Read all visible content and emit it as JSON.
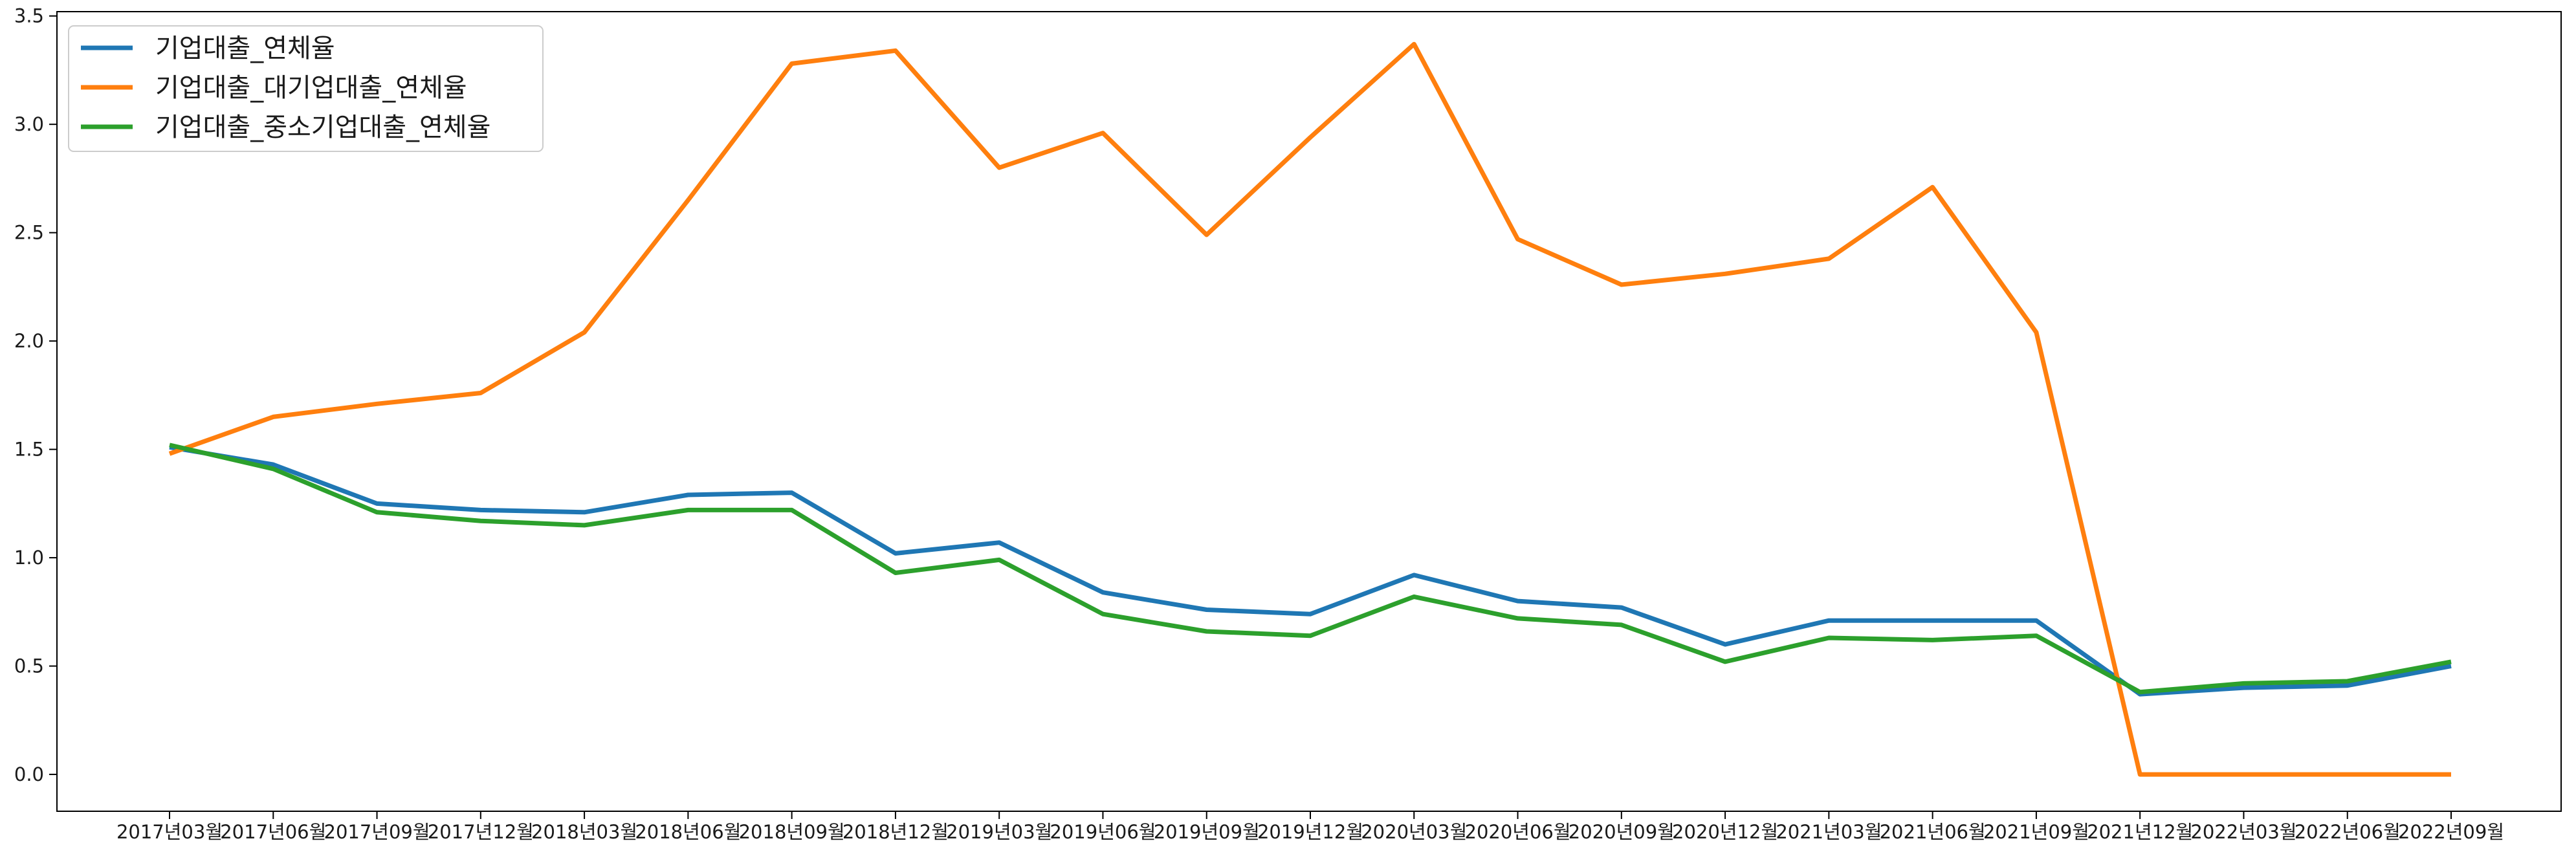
{
  "chart_data": {
    "type": "line",
    "title": "",
    "xlabel": "",
    "ylabel": "",
    "categories": [
      "2017년03월",
      "2017년06월",
      "2017년09월",
      "2017년12월",
      "2018년03월",
      "2018년06월",
      "2018년09월",
      "2018년12월",
      "2019년03월",
      "2019년06월",
      "2019년09월",
      "2019년12월",
      "2020년03월",
      "2020년06월",
      "2020년09월",
      "2020년12월",
      "2021년03월",
      "2021년06월",
      "2021년09월",
      "2021년12월",
      "2022년03월",
      "2022년06월",
      "2022년09월"
    ],
    "ylim": [
      -0.17,
      3.52
    ],
    "yticks": [
      0.0,
      0.5,
      1.0,
      1.5,
      2.0,
      2.5,
      3.0,
      3.5
    ],
    "ytick_labels": [
      "0.0",
      "0.5",
      "1.0",
      "1.5",
      "2.0",
      "2.5",
      "3.0",
      "3.5"
    ],
    "grid": false,
    "legend_position": "top-left",
    "series": [
      {
        "name": "기업대출_연체율",
        "color": "#1f77b4",
        "values": [
          1.51,
          1.43,
          1.25,
          1.22,
          1.21,
          1.29,
          1.3,
          1.02,
          1.07,
          0.84,
          0.76,
          0.74,
          0.92,
          0.8,
          0.77,
          0.6,
          0.71,
          0.71,
          0.71,
          0.37,
          0.4,
          0.41,
          0.5
        ]
      },
      {
        "name": "기업대출_대기업대출_연체율",
        "color": "#ff7f0e",
        "values": [
          1.48,
          1.65,
          1.71,
          1.76,
          2.04,
          2.65,
          3.28,
          3.34,
          2.8,
          2.96,
          2.49,
          2.94,
          3.37,
          2.47,
          2.26,
          2.31,
          2.38,
          2.71,
          2.04,
          0.0,
          0.0,
          0.0,
          0.0
        ]
      },
      {
        "name": "기업대출_중소기업대출_연체율",
        "color": "#2ca02c",
        "values": [
          1.52,
          1.41,
          1.21,
          1.17,
          1.15,
          1.22,
          1.22,
          0.93,
          0.99,
          0.74,
          0.66,
          0.64,
          0.82,
          0.72,
          0.69,
          0.52,
          0.63,
          0.62,
          0.64,
          0.38,
          0.42,
          0.43,
          0.52
        ]
      }
    ]
  }
}
